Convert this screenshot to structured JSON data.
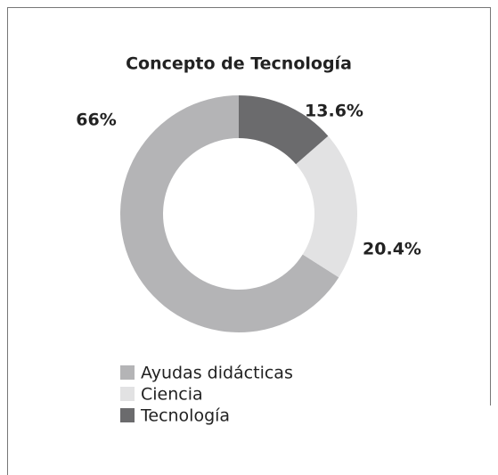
{
  "chart_data": {
    "type": "donut",
    "title": "Concepto de Tecnología",
    "categories": [
      "Ayudas didácticas",
      "Ciencia",
      "Tecnología"
    ],
    "values": [
      66,
      20.4,
      13.6
    ],
    "value_labels": [
      "66%",
      "20.4%",
      "13.6%"
    ],
    "colors": [
      "#b4b4b6",
      "#e2e2e3",
      "#6b6b6d"
    ],
    "legend": "bottom-left"
  }
}
